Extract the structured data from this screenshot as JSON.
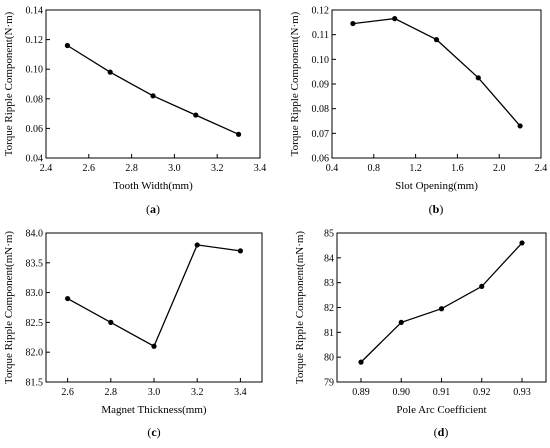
{
  "chart_data": [
    {
      "panel": "a",
      "type": "line",
      "xlabel": "Tooth Width(mm)",
      "ylabel": "Torque Ripple Component(N·m)",
      "xlim": [
        2.4,
        3.4
      ],
      "ylim": [
        0.04,
        0.14
      ],
      "xticks": [
        "2.4",
        "2.6",
        "2.8",
        "3.0",
        "3.2",
        "3.4"
      ],
      "yticks": [
        "0.04",
        "0.06",
        "0.08",
        "0.10",
        "0.12",
        "0.14"
      ],
      "x": [
        2.5,
        2.7,
        2.9,
        3.1,
        3.3
      ],
      "values": [
        0.116,
        0.098,
        0.082,
        0.069,
        0.056
      ],
      "marker": "circle",
      "grid": false
    },
    {
      "panel": "b",
      "type": "line",
      "xlabel": "Slot Opening(mm)",
      "ylabel": "Torque Ripple Component(N·m)",
      "xlim": [
        0.4,
        2.4
      ],
      "ylim": [
        0.06,
        0.12
      ],
      "xticks": [
        "0.4",
        "0.8",
        "1.2",
        "1.6",
        "2.0",
        "2.4"
      ],
      "yticks": [
        "0.06",
        "0.07",
        "0.08",
        "0.09",
        "0.10",
        "0.11",
        "0.12"
      ],
      "x": [
        0.6,
        1.0,
        1.4,
        1.8,
        2.2
      ],
      "values": [
        0.1145,
        0.1165,
        0.108,
        0.0925,
        0.073
      ],
      "marker": "circle",
      "grid": false
    },
    {
      "panel": "c",
      "type": "line",
      "xlabel": "Magnet Thickness(mm)",
      "ylabel": "Torque Ripple Component(mN·m)",
      "xlim": [
        2.5,
        3.5
      ],
      "ylim": [
        81.5,
        84.0
      ],
      "xticks": [
        "2.6",
        "2.8",
        "3.0",
        "3.2",
        "3.4"
      ],
      "yticks": [
        "81.5",
        "82.0",
        "82.5",
        "83.0",
        "83.5",
        "84.0"
      ],
      "x": [
        2.6,
        2.8,
        3.0,
        3.2,
        3.4
      ],
      "values": [
        82.9,
        82.5,
        82.1,
        83.8,
        83.7
      ],
      "marker": "circle",
      "grid": false
    },
    {
      "panel": "d",
      "type": "line",
      "xlabel": "Pole Arc Coefficient",
      "ylabel": "Torque Ripple Component(mN·m)",
      "categories": [
        "0.89",
        "0.90",
        "0.91",
        "0.92",
        "0.93"
      ],
      "ylim": [
        79,
        85
      ],
      "xticks": [
        "0.89",
        "0.90",
        "0.91",
        "0.92",
        "0.93"
      ],
      "yticks": [
        "79",
        "80",
        "81",
        "82",
        "83",
        "84",
        "85"
      ],
      "values": [
        79.8,
        81.4,
        81.95,
        82.85,
        84.6
      ],
      "marker": "circle",
      "grid": false
    }
  ],
  "panel_labels": {
    "a": {
      "open": "(",
      "letter": "a",
      "close": ")"
    },
    "b": {
      "open": "(",
      "letter": "b",
      "close": ")"
    },
    "c": {
      "open": "(",
      "letter": "c",
      "close": ")"
    },
    "d": {
      "open": "(",
      "letter": "d",
      "close": ")"
    }
  }
}
